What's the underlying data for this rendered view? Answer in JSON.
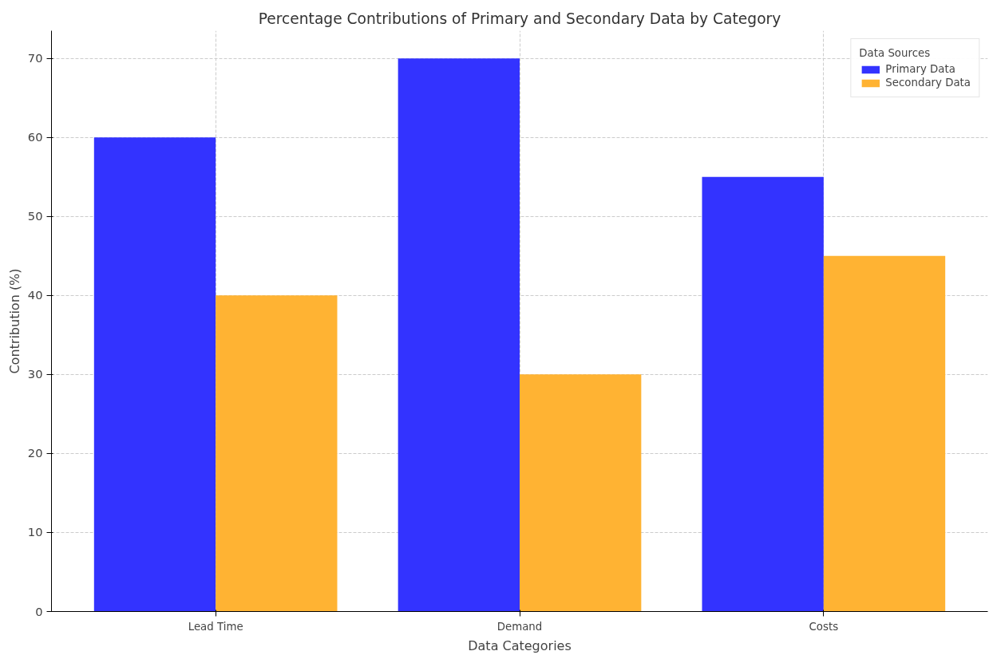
{
  "chart_data": {
    "type": "bar",
    "title": "Percentage Contributions of Primary and Secondary Data by Category",
    "xlabel": "Data Categories",
    "ylabel": "Contribution (%)",
    "legend_title": "Data Sources",
    "categories": [
      "Lead Time",
      "Demand",
      "Costs"
    ],
    "series": [
      {
        "name": "Primary Data",
        "color": "#3333ff",
        "values": [
          60,
          70,
          55
        ]
      },
      {
        "name": "Secondary Data",
        "color": "#ffb333",
        "values": [
          40,
          30,
          45
        ]
      }
    ],
    "ylim": [
      0,
      73.5
    ],
    "yticks": [
      0,
      10,
      20,
      30,
      40,
      50,
      60,
      70
    ],
    "grid": true,
    "legend": "top right"
  }
}
